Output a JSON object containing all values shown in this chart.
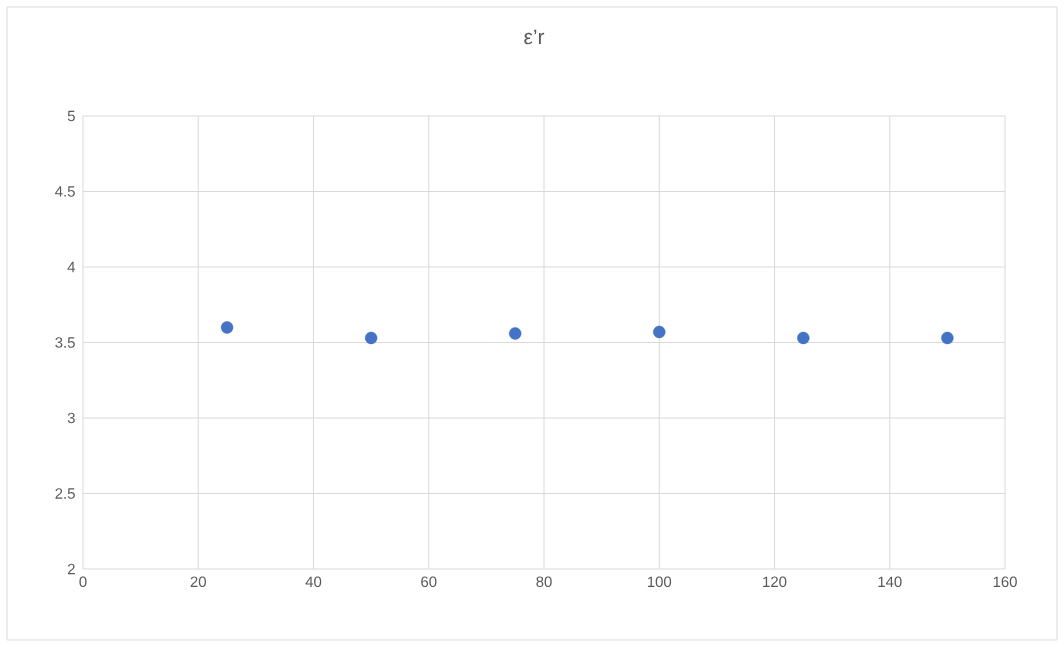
{
  "chart_data": {
    "type": "scatter",
    "title": "ε’r",
    "x": [
      25,
      50,
      75,
      100,
      125,
      150
    ],
    "values": [
      3.6,
      3.53,
      3.56,
      3.57,
      3.53,
      3.53
    ],
    "color": "#4472c4",
    "xlim": [
      0,
      160
    ],
    "xticks": [
      0,
      20,
      40,
      60,
      80,
      100,
      120,
      140,
      160
    ],
    "ylim": [
      2,
      5
    ],
    "yticks": [
      2,
      2.5,
      3,
      3.5,
      4,
      4.5,
      5
    ],
    "grid": true
  }
}
